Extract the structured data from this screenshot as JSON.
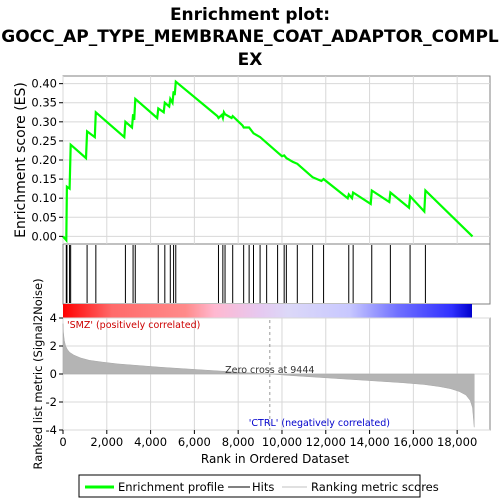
{
  "chart_data": {
    "type": "line",
    "title": "Enrichment plot:",
    "subtitle_lines": [
      "GOCC_AP_TYPE_MEMBRANE_COAT_ADAPTOR_COMPL",
      "EX"
    ],
    "ylabel_top": "Enrichment score (ES)",
    "ylabel_bottom": "Ranked list metric (Signal2Noise)",
    "xlabel": "Rank in Ordered Dataset",
    "xlim": [
      0,
      19500
    ],
    "ylim_es": [
      -0.02,
      0.42
    ],
    "ylim_metric": [
      -4,
      4
    ],
    "x_ticks": [
      0,
      2000,
      4000,
      6000,
      8000,
      10000,
      12000,
      14000,
      16000,
      18000
    ],
    "x_tick_labels": [
      "0",
      "2,000",
      "4,000",
      "6,000",
      "8,000",
      "10,000",
      "12,000",
      "14,000",
      "16,000",
      "18,000"
    ],
    "es_ticks": [
      0.0,
      0.05,
      0.1,
      0.15,
      0.2,
      0.25,
      0.3,
      0.35,
      0.4
    ],
    "es_tick_labels": [
      "0.00",
      "0.05",
      "0.10",
      "0.15",
      "0.20",
      "0.25",
      "0.30",
      "0.35",
      "0.40"
    ],
    "metric_ticks": [
      -4,
      -2,
      0,
      2,
      4
    ],
    "metric_tick_labels": [
      "-4",
      "-2",
      "0",
      "2",
      "4"
    ],
    "series": [
      {
        "name": "Enrichment profile",
        "color": "#00ff00",
        "x": [
          0,
          150,
          180,
          300,
          350,
          1050,
          1100,
          1450,
          1500,
          2800,
          2850,
          3150,
          3200,
          3250,
          3300,
          4300,
          4350,
          4600,
          4650,
          4850,
          4900,
          5000,
          5050,
          5100,
          5150,
          7050,
          7100,
          7250,
          7300,
          7350,
          7400,
          7700,
          7750,
          8200,
          8250,
          8500,
          8700,
          9000,
          9300,
          9800,
          10000,
          10100,
          10200,
          10500,
          10700,
          11300,
          11400,
          11800,
          11900,
          13000,
          13050,
          13200,
          13250,
          14050,
          14100,
          14900,
          14950,
          15800,
          15850,
          16500,
          16550,
          18700
        ],
        "y": [
          0.0,
          -0.01,
          0.13,
          0.125,
          0.24,
          0.205,
          0.275,
          0.26,
          0.325,
          0.26,
          0.3,
          0.285,
          0.32,
          0.305,
          0.36,
          0.31,
          0.335,
          0.325,
          0.35,
          0.34,
          0.36,
          0.35,
          0.38,
          0.37,
          0.405,
          0.315,
          0.31,
          0.318,
          0.31,
          0.325,
          0.32,
          0.31,
          0.315,
          0.29,
          0.285,
          0.285,
          0.27,
          0.26,
          0.245,
          0.22,
          0.21,
          0.212,
          0.205,
          0.195,
          0.19,
          0.16,
          0.155,
          0.145,
          0.15,
          0.1,
          0.11,
          0.1,
          0.115,
          0.085,
          0.12,
          0.09,
          0.115,
          0.075,
          0.105,
          0.065,
          0.12,
          0.0
        ]
      }
    ],
    "hits": [
      150,
      180,
      300,
      350,
      1100,
      1500,
      2850,
      3200,
      3300,
      4350,
      4650,
      4900,
      5050,
      5150,
      7100,
      7300,
      7400,
      7750,
      8250,
      8500,
      8700,
      9000,
      9300,
      9800,
      10100,
      10200,
      10700,
      11400,
      11900,
      13050,
      13250,
      14100,
      14950,
      15850,
      16550
    ],
    "metric_curve": {
      "x": [
        0,
        20,
        60,
        120,
        200,
        300,
        500,
        800,
        1200,
        1800,
        2500,
        3500,
        4500,
        5500,
        6500,
        7500,
        8500,
        9444,
        10500,
        11500,
        12500,
        13500,
        14500,
        15500,
        16500,
        17200,
        17700,
        18100,
        18400,
        18600,
        18700,
        18780
      ],
      "y": [
        3.6,
        3.0,
        2.4,
        2.0,
        1.75,
        1.55,
        1.35,
        1.15,
        0.98,
        0.85,
        0.72,
        0.6,
        0.48,
        0.38,
        0.28,
        0.18,
        0.08,
        0.0,
        -0.12,
        -0.22,
        -0.32,
        -0.42,
        -0.52,
        -0.62,
        -0.75,
        -0.9,
        -1.05,
        -1.25,
        -1.5,
        -1.9,
        -2.4,
        -3.8
      ]
    },
    "zero_cross_label": "Zero cross at 9444",
    "zero_cross": 9444,
    "pos_label": "'SMZ' (positively correlated)",
    "neg_label": "'CTRL' (negatively correlated)",
    "legend": [
      {
        "label": "Enrichment profile",
        "color": "#00ff00",
        "kind": "line"
      },
      {
        "label": "Hits",
        "color": "#000000",
        "kind": "line"
      },
      {
        "label": "Ranking metric scores",
        "color": "#c0c0c0",
        "kind": "line"
      }
    ],
    "legend_position": "bottom",
    "grid": true
  }
}
